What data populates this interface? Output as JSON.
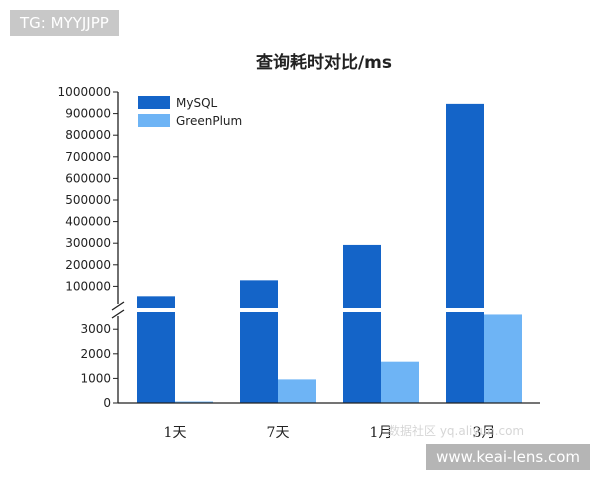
{
  "overlays": {
    "tag": "TG: MYYJJPP",
    "site": "www.keai-lens.com",
    "faint_mark": "数据社区 yq.aliyun.com"
  },
  "chart_data": {
    "type": "bar",
    "title": "查询耗时对比/ms",
    "xlabel": "",
    "ylabel": "",
    "categories": [
      "1天",
      "7天",
      "1月",
      "3月"
    ],
    "series": [
      {
        "name": "MySQL",
        "values": [
          54000,
          128000,
          292000,
          945000
        ],
        "color": "#1464c8"
      },
      {
        "name": "GreenPlum",
        "values": [
          60,
          960,
          1680,
          3600
        ],
        "color": "#6eb4f5"
      }
    ],
    "axis_break": true,
    "lower_ylim": [
      0,
      3700
    ],
    "lower_ticks": [
      0,
      1000,
      2000,
      3000
    ],
    "upper_ylim": [
      0,
      1000000
    ],
    "upper_ticks": [
      100000,
      200000,
      300000,
      400000,
      500000,
      600000,
      700000,
      800000,
      900000,
      1000000
    ],
    "legend_placement": "top-left",
    "grid": false
  }
}
